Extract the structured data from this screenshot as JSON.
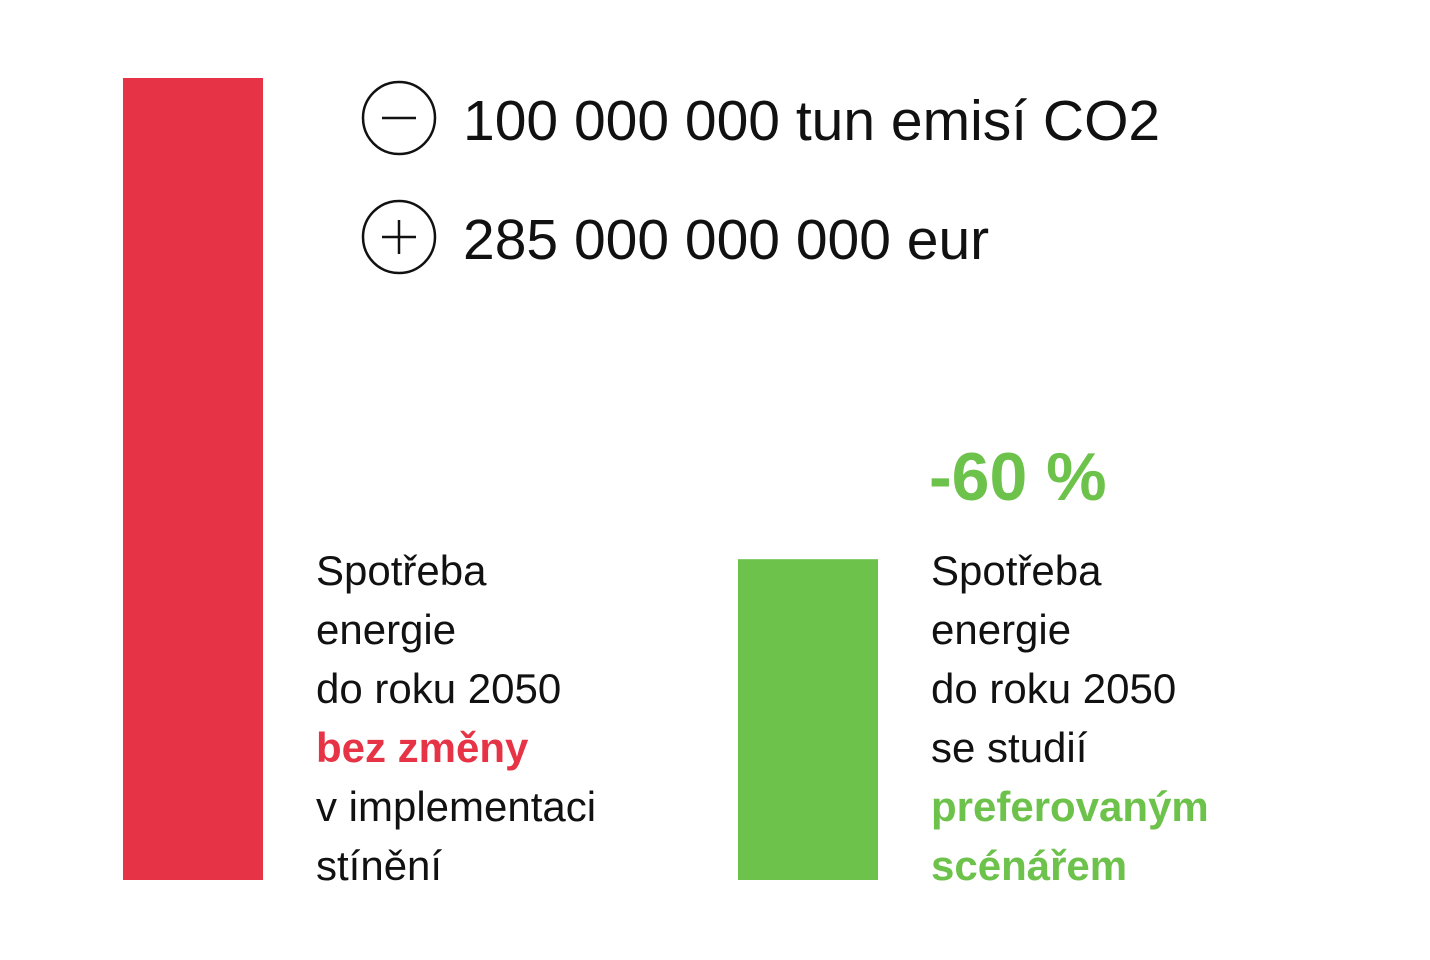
{
  "chart_data": {
    "type": "bar",
    "values": [
      100,
      40
    ],
    "colors": [
      "#e63346",
      "#6cc24a"
    ],
    "ylim": [
      0,
      100
    ],
    "stats": [
      "100 000 000 tun emisí CO2",
      "285 000 000 000 eur"
    ],
    "annotation": "-60 %",
    "descriptions": [
      [
        {
          "text": "Spotřeba",
          "bold": false
        },
        {
          "text": "energie",
          "bold": false
        },
        {
          "text": "do roku 2050",
          "bold": false
        },
        {
          "text": "bez změny",
          "bold": true
        },
        {
          "text": "v implementaci",
          "bold": false
        },
        {
          "text": "stínění",
          "bold": false
        }
      ],
      [
        {
          "text": "Spotřeba",
          "bold": false
        },
        {
          "text": "energie",
          "bold": false
        },
        {
          "text": "do roku 2050",
          "bold": false
        },
        {
          "text": "se studií",
          "bold": false
        },
        {
          "text": "preferovaným",
          "bold": true
        },
        {
          "text": "scénářem",
          "bold": true
        }
      ]
    ]
  }
}
